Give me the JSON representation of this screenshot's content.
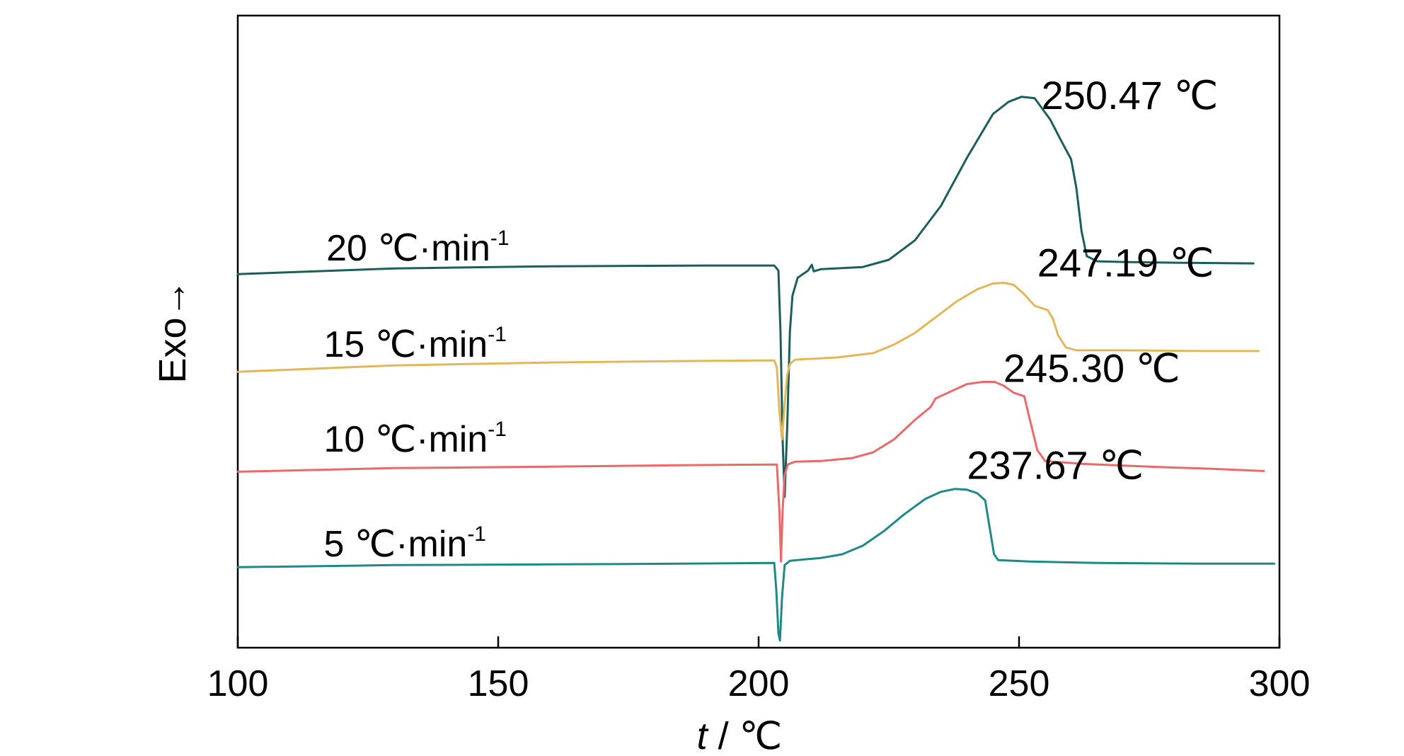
{
  "chart_data": {
    "type": "line",
    "title": "",
    "xlabel": {
      "italic": "t",
      "rest": " / ℃"
    },
    "ylabel": "Exo→",
    "xlim": [
      100,
      300
    ],
    "ylim": [
      -5.2,
      3.6
    ],
    "xticks": [
      {
        "value": 100,
        "label": "100"
      },
      {
        "value": 150,
        "label": "150"
      },
      {
        "value": 200,
        "label": "200"
      },
      {
        "value": 250,
        "label": "250"
      },
      {
        "value": 300,
        "label": "300"
      }
    ],
    "grid": false,
    "legend": "none",
    "series": [
      {
        "name": "20 ℃·min",
        "name_base": "20 ℃·min",
        "name_sup": "-1",
        "color": "#1c5e5a",
        "label_at": [
          117.0,
          0.19
        ],
        "peak_label": "250.47 ℃",
        "peak_label_at": [
          254.3,
          2.3
        ],
        "points": [
          [
            100,
            0.0
          ],
          [
            130,
            0.08
          ],
          [
            160,
            0.11
          ],
          [
            190,
            0.12
          ],
          [
            203,
            0.12
          ],
          [
            203.8,
            0.05
          ],
          [
            204.2,
            -0.8
          ],
          [
            204.6,
            -2.3
          ],
          [
            205.0,
            -3.1
          ],
          [
            205.5,
            -2.1
          ],
          [
            206.0,
            -0.8
          ],
          [
            206.5,
            -0.3
          ],
          [
            207.5,
            -0.05
          ],
          [
            209.5,
            0.05
          ],
          [
            210.2,
            0.13
          ],
          [
            210.6,
            0.04
          ],
          [
            212,
            0.07
          ],
          [
            220,
            0.1
          ],
          [
            225,
            0.2
          ],
          [
            230,
            0.47
          ],
          [
            235,
            0.95
          ],
          [
            240,
            1.62
          ],
          [
            245,
            2.23
          ],
          [
            248,
            2.4
          ],
          [
            250.5,
            2.47
          ],
          [
            253,
            2.45
          ],
          [
            256,
            2.15
          ],
          [
            258,
            1.87
          ],
          [
            260,
            1.6
          ],
          [
            261,
            1.2
          ],
          [
            262,
            0.6
          ],
          [
            263,
            0.25
          ],
          [
            265,
            0.18
          ],
          [
            270,
            0.17
          ],
          [
            280,
            0.16
          ],
          [
            295,
            0.15
          ]
        ]
      },
      {
        "name": "15 ℃·min",
        "name_base": "15 ℃·min",
        "name_sup": "-1",
        "color": "#e2b75b",
        "label_at": [
          116.5,
          -1.15
        ],
        "peak_label": "247.19 ℃",
        "peak_label_at": [
          253.5,
          -0.03
        ],
        "points": [
          [
            100,
            -1.36
          ],
          [
            130,
            -1.27
          ],
          [
            160,
            -1.23
          ],
          [
            185,
            -1.21
          ],
          [
            203,
            -1.2
          ],
          [
            203.5,
            -1.3
          ],
          [
            204.0,
            -1.9
          ],
          [
            204.5,
            -2.3
          ],
          [
            205.0,
            -1.8
          ],
          [
            205.5,
            -1.4
          ],
          [
            206.0,
            -1.25
          ],
          [
            207,
            -1.19
          ],
          [
            215,
            -1.16
          ],
          [
            222,
            -1.1
          ],
          [
            226,
            -0.98
          ],
          [
            230,
            -0.82
          ],
          [
            234,
            -0.6
          ],
          [
            238,
            -0.38
          ],
          [
            242,
            -0.21
          ],
          [
            245,
            -0.13
          ],
          [
            247.2,
            -0.12
          ],
          [
            249,
            -0.15
          ],
          [
            251,
            -0.28
          ],
          [
            253,
            -0.44
          ],
          [
            255.5,
            -0.5
          ],
          [
            256.5,
            -0.62
          ],
          [
            257.5,
            -0.85
          ],
          [
            259,
            -1.02
          ],
          [
            261,
            -1.06
          ],
          [
            270,
            -1.06
          ],
          [
            285,
            -1.07
          ],
          [
            296,
            -1.07
          ]
        ]
      },
      {
        "name": "10 ℃·min",
        "name_base": "10 ℃·min",
        "name_sup": "-1",
        "color": "#ea6a6a",
        "label_at": [
          116.5,
          -2.47
        ],
        "peak_label": "245.30 ℃",
        "peak_label_at": [
          247.0,
          -1.5
        ],
        "points": [
          [
            100,
            -2.75
          ],
          [
            130,
            -2.7
          ],
          [
            160,
            -2.68
          ],
          [
            185,
            -2.66
          ],
          [
            203.5,
            -2.65
          ],
          [
            204.0,
            -3.3
          ],
          [
            204.3,
            -4.0
          ],
          [
            204.6,
            -3.3
          ],
          [
            205.0,
            -2.8
          ],
          [
            205.6,
            -2.65
          ],
          [
            207,
            -2.61
          ],
          [
            212,
            -2.6
          ],
          [
            218,
            -2.56
          ],
          [
            222,
            -2.48
          ],
          [
            226,
            -2.3
          ],
          [
            230,
            -2.03
          ],
          [
            233,
            -1.85
          ],
          [
            234,
            -1.73
          ],
          [
            237,
            -1.63
          ],
          [
            240,
            -1.53
          ],
          [
            243,
            -1.5
          ],
          [
            245.3,
            -1.5
          ],
          [
            247,
            -1.55
          ],
          [
            249,
            -1.65
          ],
          [
            251,
            -1.7
          ],
          [
            252,
            -2.0
          ],
          [
            253.5,
            -2.45
          ],
          [
            255,
            -2.6
          ],
          [
            262,
            -2.64
          ],
          [
            275,
            -2.68
          ],
          [
            287,
            -2.71
          ],
          [
            297,
            -2.74
          ]
        ]
      },
      {
        "name": "5 ℃·min",
        "name_base": "5 ℃·min",
        "name_sup": "-1",
        "color": "#1f8a85",
        "label_at": [
          116.5,
          -3.93
        ],
        "peak_label": "237.67 ℃",
        "peak_label_at": [
          240.0,
          -2.85
        ],
        "points": [
          [
            100,
            -4.08
          ],
          [
            130,
            -4.05
          ],
          [
            160,
            -4.04
          ],
          [
            185,
            -4.03
          ],
          [
            203.0,
            -4.02
          ],
          [
            203.4,
            -4.4
          ],
          [
            203.8,
            -5.0
          ],
          [
            204.1,
            -5.1
          ],
          [
            204.5,
            -4.5
          ],
          [
            205.0,
            -4.05
          ],
          [
            206,
            -3.99
          ],
          [
            212,
            -3.95
          ],
          [
            216,
            -3.9
          ],
          [
            220,
            -3.78
          ],
          [
            224,
            -3.58
          ],
          [
            228,
            -3.34
          ],
          [
            232,
            -3.13
          ],
          [
            235,
            -3.03
          ],
          [
            237.7,
            -2.99
          ],
          [
            240,
            -3.0
          ],
          [
            242,
            -3.05
          ],
          [
            243.5,
            -3.15
          ],
          [
            244.3,
            -3.5
          ],
          [
            245.2,
            -3.9
          ],
          [
            246,
            -3.98
          ],
          [
            252,
            -4.0
          ],
          [
            265,
            -4.02
          ],
          [
            285,
            -4.03
          ],
          [
            299,
            -4.03
          ]
        ]
      }
    ]
  }
}
